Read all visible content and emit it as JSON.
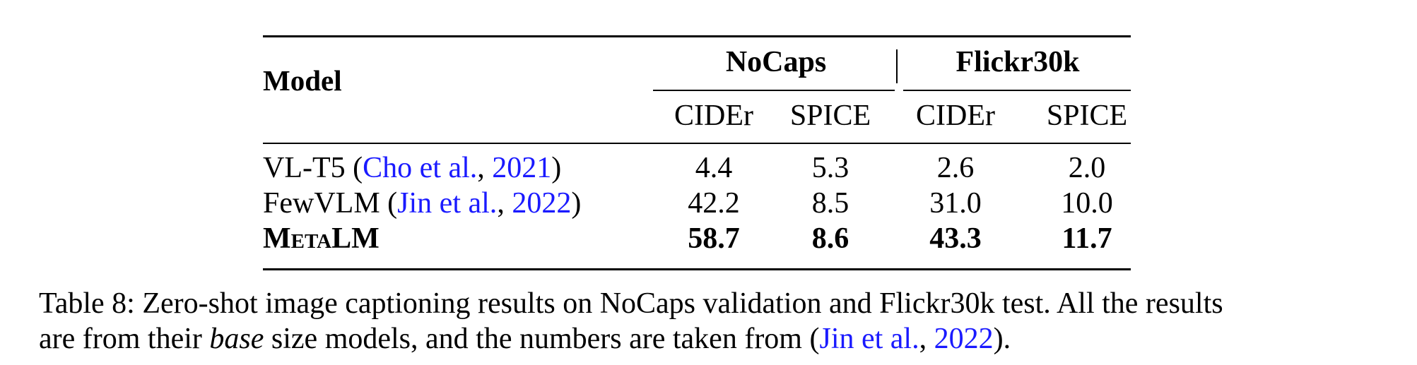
{
  "table": {
    "header": {
      "model": "Model",
      "groups": [
        "NoCaps",
        "Flickr30k"
      ],
      "metrics": [
        "CIDEr",
        "SPICE",
        "CIDEr",
        "SPICE"
      ]
    },
    "rows": [
      {
        "name": "VL-T5",
        "cite_open": " (",
        "cite_author": "Cho et al.",
        "cite_sep": ", ",
        "cite_year": "2021",
        "cite_close": ")",
        "values": [
          "4.4",
          "5.3",
          "2.6",
          "2.0"
        ]
      },
      {
        "name": "FewVLM",
        "cite_open": " (",
        "cite_author": "Jin et al.",
        "cite_sep": ", ",
        "cite_year": "2022",
        "cite_close": ")",
        "values": [
          "42.2",
          "8.5",
          "31.0",
          "10.0"
        ]
      },
      {
        "name": "MetaLM",
        "values": [
          "58.7",
          "8.6",
          "43.3",
          "11.7"
        ]
      }
    ]
  },
  "caption": {
    "line1": "Table 8: Zero-shot image captioning results on NoCaps validation and Flickr30k test. All the results",
    "line2_a": "are from their ",
    "line2_em": "base",
    "line2_b": " size models, and the numbers are taken from (",
    "line2_cite_author": "Jin et al.",
    "line2_cite_sep": ", ",
    "line2_cite_year": "2022",
    "line2_end": ")."
  },
  "colors": {
    "text": "#000000",
    "citation": "#1a1aff"
  }
}
